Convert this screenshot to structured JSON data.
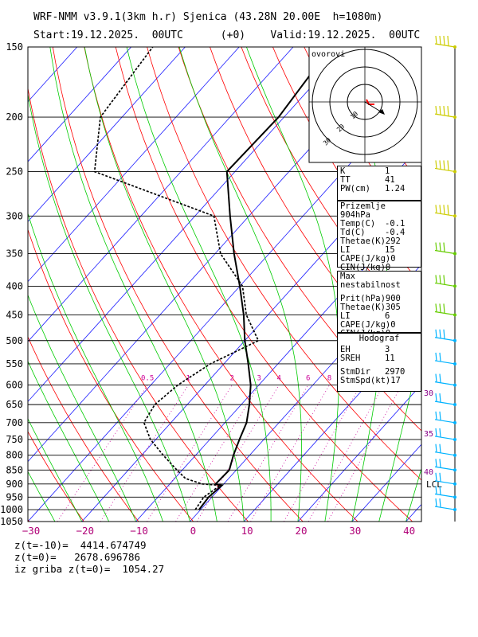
{
  "header": {
    "line1": "WRF-NMM v3.9.1(3km h.r) Sjenica (43.28N 20.00E  h=1080m)",
    "line2": "Start:19.12.2025.  00UTC      (+0)    Valid:19.12.2025.  00UTC"
  },
  "hodograph": {
    "label": "ovorovi",
    "ring_labels": [
      "10",
      "20",
      "30"
    ]
  },
  "indices": {
    "k": {
      "label": "K",
      "value": "1"
    },
    "tt": {
      "label": "TT",
      "value": "41"
    },
    "pw": {
      "label": "PW(cm)",
      "value": "1.24"
    }
  },
  "surface": {
    "title": "Prizemlje 904hPa",
    "rows": [
      {
        "label": "Temp(C)",
        "value": "-0.1"
      },
      {
        "label": "Td(C)",
        "value": "-0.4"
      },
      {
        "label": "Thetae(K)",
        "value": "292"
      },
      {
        "label": "LI",
        "value": "15"
      },
      {
        "label": "CAPE(J/kg)",
        "value": "0"
      },
      {
        "label": "CIN(J/kg)",
        "value": "0"
      }
    ]
  },
  "instability": {
    "title": "Max nestabilnost",
    "rows": [
      {
        "label": "Prit(hPa)",
        "value": "900"
      },
      {
        "label": "Thetae(K)",
        "value": "305"
      },
      {
        "label": "LI",
        "value": "6"
      },
      {
        "label": "CAPE(J/kg)",
        "value": "0"
      },
      {
        "label": "CIN(J/kg)",
        "value": "0"
      }
    ]
  },
  "hodograf": {
    "title": "Hodograf",
    "rows": [
      {
        "label": "EH",
        "value": "3"
      },
      {
        "label": "SREH",
        "value": "11"
      },
      {
        "label": "StmDir",
        "value": "2970"
      },
      {
        "label": "StmSpd(kt)",
        "value": "17"
      }
    ]
  },
  "footer": {
    "z1": "z(t=-10)=  4414.674749",
    "z2": "z(t=0)=   2678.696786",
    "z3": "iz griba z(t=0)=  1054.27"
  },
  "lcl_label": "LCL",
  "mixing_ratio_labels": [
    "0.5",
    "1",
    "2",
    "3",
    "4",
    "6",
    "8"
  ],
  "theta_e_labels": [
    "30",
    "35",
    "40"
  ],
  "colors": {
    "isotherm": "#1a1aff",
    "dry_adiabat": "#ff0000",
    "moist_adiabat": "#00cc00",
    "mixing_ratio": "#cc0099",
    "temperature": "#000000",
    "dewpoint": "#000000",
    "wind_barbs": "#00b3ff",
    "barb_upper": "#cccc00",
    "barb_mid": "#66cc00",
    "theta_label": "#880088"
  },
  "chart_data": {
    "type": "line",
    "yscale": "log",
    "ylim": [
      1050,
      150
    ],
    "xlim": [
      -30,
      40
    ],
    "x_ticks": [
      "−30",
      "−20",
      "−10",
      "0",
      "10",
      "20",
      "30",
      "40"
    ],
    "y_ticks": [
      "150",
      "200",
      "250",
      "300",
      "350",
      "400",
      "450",
      "500",
      "550",
      "600",
      "650",
      "700",
      "750",
      "800",
      "850",
      "900",
      "950",
      "1000",
      "1050"
    ],
    "series": [
      {
        "style": "solid",
        "pressure": [
          1000,
          950,
          905,
          900,
          850,
          800,
          750,
          700,
          650,
          600,
          550,
          500,
          450,
          400,
          350,
          300,
          250,
          200,
          150
        ],
        "temperature": [
          -0.3,
          -0.6,
          -0.1,
          -1.5,
          -1.3,
          -3.0,
          -4.5,
          -6.0,
          -8.5,
          -11.5,
          -15.5,
          -20.0,
          -24.5,
          -30.0,
          -36.5,
          -43.5,
          -51.5,
          -51.0,
          -53.0
        ]
      },
      {
        "style": "dotted",
        "pressure": [
          1000,
          950,
          905,
          900,
          880,
          850,
          800,
          750,
          700,
          650,
          600,
          550,
          500,
          450,
          400,
          350,
          300,
          250,
          200,
          150
        ],
        "temperature": [
          -1.0,
          -1.5,
          -0.4,
          -4.0,
          -8.0,
          -11.0,
          -16.0,
          -21.0,
          -25.0,
          -26.0,
          -25.0,
          -22.5,
          -17.5,
          -24.0,
          -29.5,
          -39.0,
          -46.5,
          -76.0,
          -84.0,
          -86.0
        ]
      }
    ],
    "wind_barbs_pressure": [
      1000,
      950,
      900,
      850,
      800,
      750,
      700,
      650,
      600,
      550,
      500,
      450,
      400,
      350,
      300,
      250,
      200,
      150
    ]
  }
}
